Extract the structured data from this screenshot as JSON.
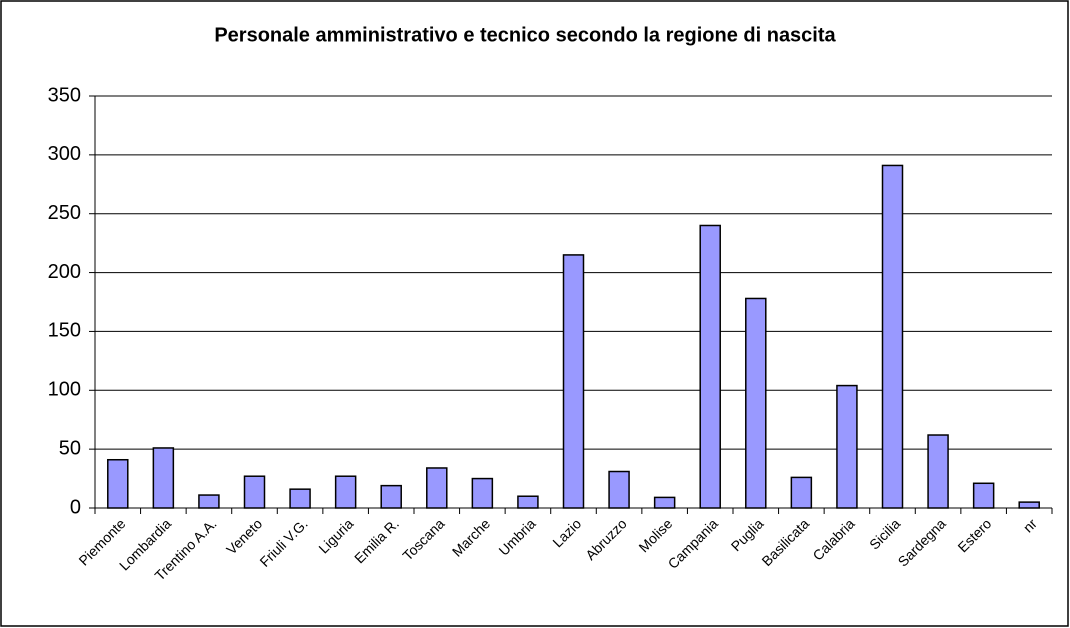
{
  "chart_data": {
    "type": "bar",
    "title": "Personale amministrativo e tecnico secondo la regione di nascita",
    "categories": [
      "Piemonte",
      "Lombardia",
      "Trentino A.A.",
      "Veneto",
      "Friuli V.G.",
      "Liguria",
      "Emilia R.",
      "Toscana",
      "Marche",
      "Umbria",
      "Lazio",
      "Abruzzo",
      "Molise",
      "Campania",
      "Puglia",
      "Basilicata",
      "Calabria",
      "Sicilia",
      "Sardegna",
      "Estero",
      "nr"
    ],
    "values": [
      41,
      51,
      11,
      27,
      16,
      27,
      19,
      34,
      25,
      10,
      215,
      31,
      9,
      240,
      178,
      26,
      104,
      291,
      62,
      21,
      5
    ],
    "color": "#9999ff",
    "ylim": [
      0,
      350
    ],
    "yticks": [
      0,
      50,
      100,
      150,
      200,
      250,
      300,
      350
    ],
    "grid": true
  }
}
